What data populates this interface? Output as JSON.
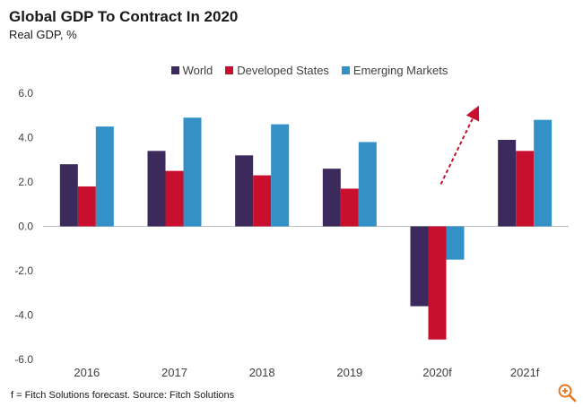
{
  "title": "Global GDP To Contract In 2020",
  "subtitle": "Real GDP, %",
  "footnote": "f = Fitch Solutions forecast. Source: Fitch Solutions",
  "chart_data": {
    "type": "bar",
    "title": "Global GDP To Contract In 2020",
    "subtitle": "Real GDP, %",
    "xlabel": "",
    "ylabel": "",
    "categories": [
      "2016",
      "2017",
      "2018",
      "2019",
      "2020f",
      "2021f"
    ],
    "series": [
      {
        "name": "World",
        "color": "#3b2a5b",
        "values": [
          2.8,
          3.4,
          3.2,
          2.6,
          -3.6,
          3.9
        ]
      },
      {
        "name": "Developed States",
        "color": "#c8102e",
        "values": [
          1.8,
          2.5,
          2.3,
          1.7,
          -5.1,
          3.4
        ]
      },
      {
        "name": "Emerging Markets",
        "color": "#3391c7",
        "values": [
          4.5,
          4.9,
          4.6,
          3.8,
          -1.5,
          4.8
        ]
      }
    ],
    "ylim": [
      -6.0,
      6.0
    ],
    "yticks": [
      "6.0",
      "4.0",
      "2.0",
      "0.0",
      "-2.0",
      "-4.0",
      "-6.0"
    ],
    "ytick_values": [
      6,
      4,
      2,
      0,
      -2,
      -4,
      -6
    ],
    "legend_position": "top",
    "grid": false,
    "annotation": "dashed arrow pointing up from 2020f to 2021f",
    "annotation_color": "#c8102e"
  },
  "icons": {
    "zoom": "zoom-in-icon"
  }
}
